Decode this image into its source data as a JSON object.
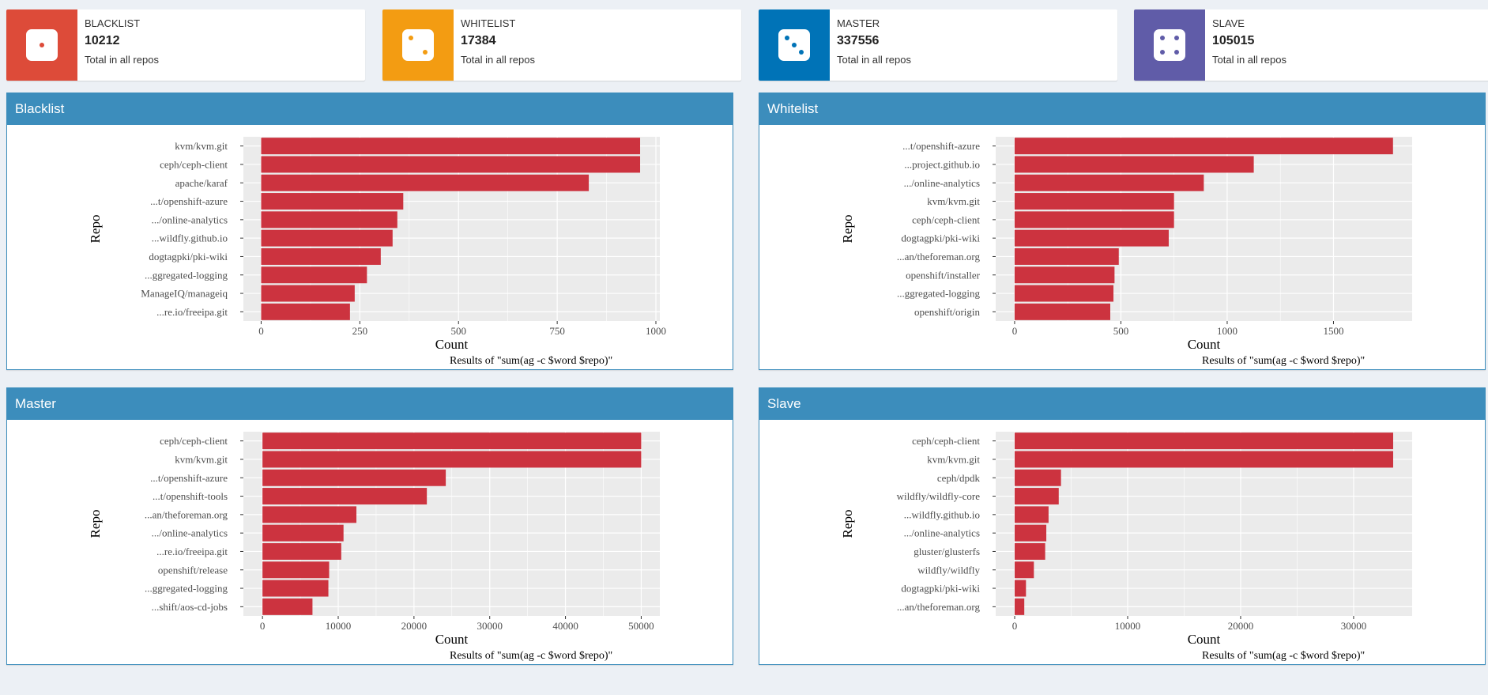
{
  "colors": {
    "blacklist": "#dd4b39",
    "whitelist": "#f39c12",
    "master": "#0073b7",
    "slave": "#605ca8",
    "bar": "#cc333f",
    "panel_header": "#3c8dbc",
    "plot_bg": "#ebebeb"
  },
  "infoboxes": [
    {
      "label": "BLACKLIST",
      "value": "10212",
      "subtitle": "Total in all repos",
      "icon": "dice-one-icon"
    },
    {
      "label": "WHITELIST",
      "value": "17384",
      "subtitle": "Total in all repos",
      "icon": "dice-two-icon"
    },
    {
      "label": "MASTER",
      "value": "337556",
      "subtitle": "Total in all repos",
      "icon": "dice-three-icon"
    },
    {
      "label": "SLAVE",
      "value": "105015",
      "subtitle": "Total in all repos",
      "icon": "dice-four-icon"
    }
  ],
  "panels": [
    {
      "title": "Blacklist"
    },
    {
      "title": "Whitelist"
    },
    {
      "title": "Master"
    },
    {
      "title": "Slave"
    }
  ],
  "chart_data": [
    {
      "type": "bar",
      "orientation": "horizontal",
      "title": "",
      "caption": "Results of \"sum(ag -c $word $repo)\"",
      "xlabel": "Count",
      "ylabel": "Repo",
      "categories": [
        "kvm/kvm.git",
        "ceph/ceph-client",
        "apache/karaf",
        "...t/openshift-azure",
        ".../online-analytics",
        "...wildfly.github.io",
        "dogtagpki/pki-wiki",
        "...ggregated-logging",
        "ManageIQ/manageiq",
        "...re.io/freeipa.git"
      ],
      "values": [
        960,
        960,
        830,
        360,
        345,
        333,
        303,
        268,
        237,
        225
      ],
      "xlim": [
        -45,
        1010
      ],
      "xticks": [
        0,
        250,
        500,
        750,
        1000
      ],
      "xtick_labels": [
        "0",
        "250",
        "500",
        "750",
        "1000"
      ]
    },
    {
      "type": "bar",
      "orientation": "horizontal",
      "title": "",
      "caption": "Results of \"sum(ag -c $word $repo)\"",
      "xlabel": "Count",
      "ylabel": "Repo",
      "categories": [
        "...t/openshift-azure",
        "...project.github.io",
        ".../online-analytics",
        "kvm/kvm.git",
        "ceph/ceph-client",
        "dogtagpki/pki-wiki",
        "...an/theforeman.org",
        "openshift/installer",
        "...ggregated-logging",
        "openshift/origin"
      ],
      "values": [
        1780,
        1125,
        890,
        750,
        750,
        725,
        490,
        470,
        465,
        450
      ],
      "xlim": [
        -89,
        1870
      ],
      "xticks": [
        0,
        500,
        1000,
        1500
      ],
      "xtick_labels": [
        "0",
        "500",
        "1000",
        "1500"
      ]
    },
    {
      "type": "bar",
      "orientation": "horizontal",
      "title": "",
      "caption": "Results of \"sum(ag -c $word $repo)\"",
      "xlabel": "Count",
      "ylabel": "Repo",
      "categories": [
        "ceph/ceph-client",
        "kvm/kvm.git",
        "...t/openshift-azure",
        "...t/openshift-tools",
        "...an/theforeman.org",
        ".../online-analytics",
        "...re.io/freeipa.git",
        "openshift/release",
        "...ggregated-logging",
        "...shift/aos-cd-jobs"
      ],
      "values": [
        50000,
        50000,
        24200,
        21700,
        12400,
        10700,
        10400,
        8800,
        8700,
        6600
      ],
      "xlim": [
        -2520,
        52460
      ],
      "xticks": [
        0,
        10000,
        20000,
        30000,
        40000,
        50000
      ],
      "xtick_labels": [
        "0",
        "10000",
        "20000",
        "30000",
        "40000",
        "50000"
      ]
    },
    {
      "type": "bar",
      "orientation": "horizontal",
      "title": "",
      "caption": "Results of \"sum(ag -c $word $repo)\"",
      "xlabel": "Count",
      "ylabel": "Repo",
      "categories": [
        "ceph/ceph-client",
        "kvm/kvm.git",
        "ceph/dpdk",
        "wildfly/wildfly-core",
        "...wildfly.github.io",
        ".../online-analytics",
        "gluster/glusterfs",
        "wildfly/wildfly",
        "dogtagpki/pki-wiki",
        "...an/theforeman.org"
      ],
      "values": [
        33500,
        33500,
        4100,
        3900,
        3000,
        2800,
        2700,
        1700,
        1000,
        850
      ],
      "xlim": [
        -1680,
        35180
      ],
      "xticks": [
        0,
        10000,
        20000,
        30000
      ],
      "xtick_labels": [
        "0",
        "10000",
        "20000",
        "30000"
      ]
    }
  ]
}
